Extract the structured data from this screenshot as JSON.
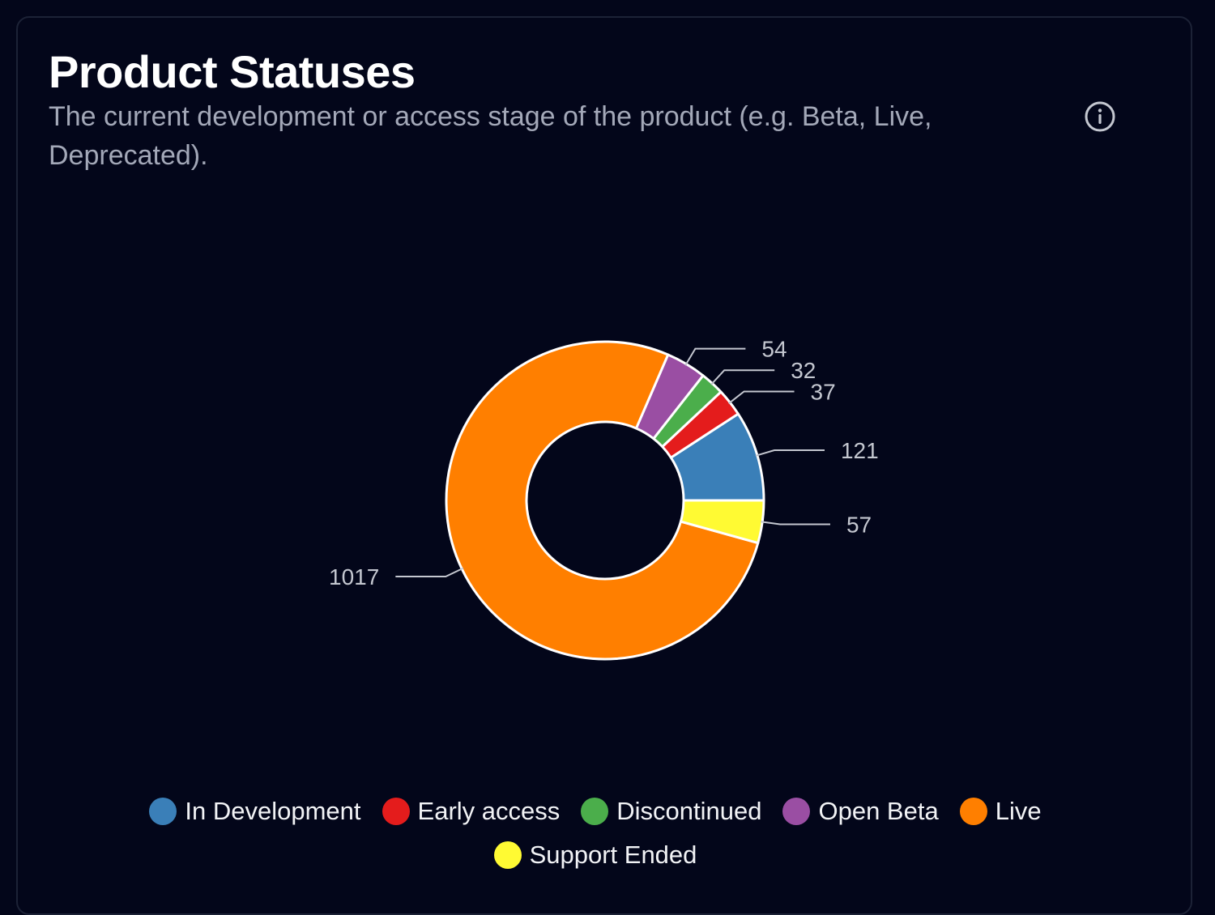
{
  "card": {
    "title": "Product Statuses",
    "subtitle": "The current development or access stage of the product (e.g. Beta, Live, Deprecated).",
    "info_icon": "info-circle-icon"
  },
  "chart_data": {
    "type": "pie",
    "variant": "donut",
    "title": "Product Statuses",
    "series": [
      {
        "name": "In Development",
        "value": 121,
        "color": "#3a7fb8"
      },
      {
        "name": "Early access",
        "value": 37,
        "color": "#e41c1c"
      },
      {
        "name": "Discontinued",
        "value": 32,
        "color": "#4bae4b"
      },
      {
        "name": "Open Beta",
        "value": 54,
        "color": "#9a4ea3"
      },
      {
        "name": "Live",
        "value": 1017,
        "color": "#ff7f00"
      },
      {
        "name": "Support Ended",
        "value": 57,
        "color": "#fffa33"
      }
    ],
    "legend_position": "bottom",
    "data_labels": true
  }
}
